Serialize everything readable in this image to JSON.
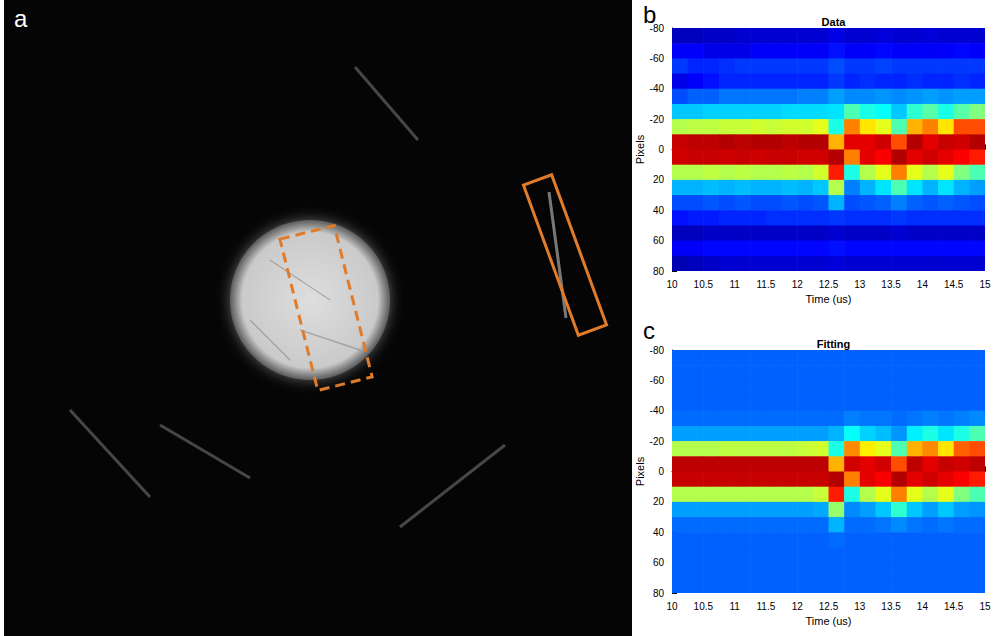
{
  "panel_a": {
    "panel_label": "a"
  },
  "chart_data": [
    {
      "type": "heatmap",
      "panel_label": "b",
      "title": "Data",
      "x_label": "Time (us)",
      "y_label": "Pixels",
      "x": [
        10.125,
        10.375,
        10.625,
        10.875,
        11.125,
        11.375,
        11.625,
        11.875,
        12.125,
        12.375,
        12.625,
        12.875,
        13.125,
        13.375,
        13.625,
        13.875,
        14.125,
        14.375,
        14.625,
        14.875
      ],
      "y": [
        -75,
        -65,
        -55,
        -45,
        -35,
        -25,
        -15,
        -5,
        5,
        15,
        25,
        35,
        45,
        55,
        65,
        75
      ],
      "z": [
        [
          0.06,
          0.06,
          0.07,
          0.07,
          0.08,
          0.08,
          0.08,
          0.08,
          0.08,
          0.08,
          0.1,
          0.08,
          0.08,
          0.09,
          0.08,
          0.08,
          0.09,
          0.08,
          0.08,
          0.08
        ],
        [
          0.12,
          0.12,
          0.1,
          0.1,
          0.1,
          0.12,
          0.12,
          0.12,
          0.12,
          0.12,
          0.14,
          0.12,
          0.12,
          0.13,
          0.12,
          0.12,
          0.12,
          0.12,
          0.13,
          0.12
        ],
        [
          0.18,
          0.16,
          0.16,
          0.17,
          0.18,
          0.18,
          0.18,
          0.18,
          0.18,
          0.18,
          0.2,
          0.18,
          0.18,
          0.19,
          0.18,
          0.18,
          0.18,
          0.18,
          0.18,
          0.18
        ],
        [
          0.1,
          0.12,
          0.14,
          0.16,
          0.16,
          0.16,
          0.16,
          0.16,
          0.16,
          0.16,
          0.18,
          0.16,
          0.17,
          0.16,
          0.16,
          0.17,
          0.16,
          0.16,
          0.17,
          0.16
        ],
        [
          0.2,
          0.22,
          0.22,
          0.24,
          0.24,
          0.24,
          0.24,
          0.24,
          0.25,
          0.25,
          0.28,
          0.26,
          0.26,
          0.27,
          0.26,
          0.27,
          0.28,
          0.27,
          0.28,
          0.28
        ],
        [
          0.32,
          0.32,
          0.33,
          0.33,
          0.33,
          0.33,
          0.33,
          0.34,
          0.34,
          0.34,
          0.35,
          0.45,
          0.4,
          0.38,
          0.32,
          0.42,
          0.46,
          0.4,
          0.46,
          0.5
        ],
        [
          0.55,
          0.56,
          0.56,
          0.57,
          0.57,
          0.58,
          0.57,
          0.58,
          0.58,
          0.6,
          0.4,
          0.75,
          0.65,
          0.6,
          0.45,
          0.7,
          0.75,
          0.65,
          0.8,
          0.8
        ],
        [
          0.93,
          0.94,
          0.94,
          0.95,
          0.94,
          0.95,
          0.95,
          0.94,
          0.95,
          0.95,
          0.7,
          0.9,
          0.9,
          0.92,
          0.8,
          0.95,
          0.9,
          0.93,
          0.92,
          0.95
        ],
        [
          0.92,
          0.93,
          0.93,
          0.92,
          0.93,
          0.92,
          0.93,
          0.93,
          0.92,
          0.92,
          0.95,
          0.75,
          0.9,
          0.88,
          0.95,
          0.9,
          0.92,
          0.9,
          0.88,
          0.85
        ],
        [
          0.55,
          0.55,
          0.56,
          0.55,
          0.56,
          0.55,
          0.55,
          0.56,
          0.55,
          0.58,
          0.85,
          0.4,
          0.55,
          0.6,
          0.75,
          0.6,
          0.55,
          0.6,
          0.5,
          0.45
        ],
        [
          0.3,
          0.3,
          0.31,
          0.3,
          0.31,
          0.3,
          0.3,
          0.31,
          0.3,
          0.32,
          0.55,
          0.25,
          0.3,
          0.35,
          0.45,
          0.35,
          0.3,
          0.35,
          0.3,
          0.28
        ],
        [
          0.2,
          0.2,
          0.21,
          0.2,
          0.21,
          0.2,
          0.2,
          0.21,
          0.2,
          0.21,
          0.3,
          0.2,
          0.21,
          0.22,
          0.25,
          0.22,
          0.21,
          0.22,
          0.21,
          0.2
        ],
        [
          0.14,
          0.15,
          0.15,
          0.16,
          0.16,
          0.16,
          0.17,
          0.17,
          0.17,
          0.17,
          0.18,
          0.17,
          0.17,
          0.17,
          0.18,
          0.17,
          0.17,
          0.17,
          0.17,
          0.17
        ],
        [
          0.06,
          0.06,
          0.07,
          0.07,
          0.07,
          0.07,
          0.07,
          0.07,
          0.07,
          0.07,
          0.08,
          0.07,
          0.07,
          0.07,
          0.08,
          0.07,
          0.07,
          0.07,
          0.07,
          0.07
        ],
        [
          0.12,
          0.12,
          0.13,
          0.13,
          0.13,
          0.13,
          0.13,
          0.13,
          0.13,
          0.13,
          0.14,
          0.13,
          0.13,
          0.13,
          0.13,
          0.13,
          0.13,
          0.13,
          0.13,
          0.13
        ],
        [
          0.05,
          0.06,
          0.07,
          0.08,
          0.08,
          0.08,
          0.08,
          0.08,
          0.08,
          0.08,
          0.09,
          0.08,
          0.08,
          0.08,
          0.08,
          0.08,
          0.08,
          0.08,
          0.08,
          0.08
        ]
      ],
      "zlim": [
        0,
        1
      ],
      "xlim": [
        10,
        15
      ],
      "xticks": [
        10,
        10.5,
        11,
        11.5,
        12,
        12.5,
        13,
        13.5,
        14,
        14.5,
        15
      ],
      "ylim": [
        -80,
        80
      ],
      "yticks": [
        -80,
        -60,
        -40,
        -20,
        0,
        20,
        40,
        60,
        80
      ]
    },
    {
      "type": "heatmap",
      "panel_label": "c",
      "title": "Fitting",
      "x_label": "Time (us)",
      "y_label": "Pixels",
      "x": [
        10.125,
        10.375,
        10.625,
        10.875,
        11.125,
        11.375,
        11.625,
        11.875,
        12.125,
        12.375,
        12.625,
        12.875,
        13.125,
        13.375,
        13.625,
        13.875,
        14.125,
        14.375,
        14.625,
        14.875
      ],
      "y": [
        -75,
        -65,
        -55,
        -45,
        -35,
        -25,
        -15,
        -5,
        5,
        15,
        25,
        35,
        45,
        55,
        65,
        75
      ],
      "z": [
        [
          0.22,
          0.22,
          0.22,
          0.22,
          0.22,
          0.22,
          0.22,
          0.22,
          0.22,
          0.22,
          0.22,
          0.22,
          0.22,
          0.22,
          0.22,
          0.22,
          0.22,
          0.22,
          0.22,
          0.22
        ],
        [
          0.22,
          0.22,
          0.22,
          0.22,
          0.22,
          0.22,
          0.22,
          0.22,
          0.22,
          0.22,
          0.22,
          0.22,
          0.22,
          0.22,
          0.22,
          0.22,
          0.22,
          0.22,
          0.22,
          0.22
        ],
        [
          0.22,
          0.22,
          0.22,
          0.22,
          0.22,
          0.22,
          0.22,
          0.22,
          0.22,
          0.22,
          0.22,
          0.22,
          0.22,
          0.22,
          0.22,
          0.22,
          0.22,
          0.22,
          0.22,
          0.22
        ],
        [
          0.22,
          0.22,
          0.22,
          0.22,
          0.22,
          0.22,
          0.22,
          0.22,
          0.22,
          0.22,
          0.22,
          0.22,
          0.22,
          0.22,
          0.22,
          0.22,
          0.22,
          0.22,
          0.22,
          0.22
        ],
        [
          0.23,
          0.23,
          0.23,
          0.23,
          0.23,
          0.23,
          0.23,
          0.23,
          0.23,
          0.23,
          0.23,
          0.25,
          0.24,
          0.24,
          0.23,
          0.24,
          0.25,
          0.24,
          0.25,
          0.26
        ],
        [
          0.28,
          0.28,
          0.28,
          0.28,
          0.28,
          0.28,
          0.28,
          0.28,
          0.28,
          0.28,
          0.3,
          0.38,
          0.33,
          0.31,
          0.27,
          0.36,
          0.4,
          0.35,
          0.4,
          0.45
        ],
        [
          0.55,
          0.55,
          0.55,
          0.56,
          0.56,
          0.56,
          0.56,
          0.56,
          0.57,
          0.58,
          0.4,
          0.74,
          0.64,
          0.6,
          0.45,
          0.7,
          0.74,
          0.65,
          0.78,
          0.8
        ],
        [
          0.94,
          0.94,
          0.94,
          0.94,
          0.94,
          0.94,
          0.94,
          0.94,
          0.94,
          0.94,
          0.7,
          0.92,
          0.9,
          0.92,
          0.8,
          0.94,
          0.9,
          0.93,
          0.92,
          0.94
        ],
        [
          0.93,
          0.93,
          0.93,
          0.93,
          0.93,
          0.93,
          0.93,
          0.93,
          0.93,
          0.93,
          0.95,
          0.75,
          0.9,
          0.88,
          0.95,
          0.9,
          0.92,
          0.9,
          0.88,
          0.85
        ],
        [
          0.55,
          0.55,
          0.55,
          0.55,
          0.55,
          0.55,
          0.55,
          0.55,
          0.55,
          0.57,
          0.85,
          0.4,
          0.55,
          0.6,
          0.75,
          0.6,
          0.55,
          0.6,
          0.5,
          0.45
        ],
        [
          0.28,
          0.28,
          0.28,
          0.28,
          0.28,
          0.28,
          0.28,
          0.28,
          0.28,
          0.29,
          0.52,
          0.26,
          0.28,
          0.32,
          0.42,
          0.32,
          0.28,
          0.32,
          0.28,
          0.27
        ],
        [
          0.23,
          0.23,
          0.23,
          0.23,
          0.23,
          0.23,
          0.23,
          0.23,
          0.23,
          0.23,
          0.3,
          0.23,
          0.23,
          0.24,
          0.26,
          0.24,
          0.23,
          0.24,
          0.23,
          0.23
        ],
        [
          0.22,
          0.22,
          0.22,
          0.22,
          0.22,
          0.22,
          0.22,
          0.22,
          0.22,
          0.22,
          0.23,
          0.22,
          0.22,
          0.22,
          0.22,
          0.22,
          0.22,
          0.22,
          0.22,
          0.22
        ],
        [
          0.22,
          0.22,
          0.22,
          0.22,
          0.22,
          0.22,
          0.22,
          0.22,
          0.22,
          0.22,
          0.22,
          0.22,
          0.22,
          0.22,
          0.22,
          0.22,
          0.22,
          0.22,
          0.22,
          0.22
        ],
        [
          0.22,
          0.22,
          0.22,
          0.22,
          0.22,
          0.22,
          0.22,
          0.22,
          0.22,
          0.22,
          0.22,
          0.22,
          0.22,
          0.22,
          0.22,
          0.22,
          0.22,
          0.22,
          0.22,
          0.22
        ],
        [
          0.22,
          0.22,
          0.22,
          0.22,
          0.22,
          0.22,
          0.22,
          0.22,
          0.22,
          0.22,
          0.22,
          0.22,
          0.22,
          0.22,
          0.22,
          0.22,
          0.22,
          0.22,
          0.22,
          0.22
        ]
      ],
      "zlim": [
        0,
        1
      ],
      "xlim": [
        10,
        15
      ],
      "xticks": [
        10,
        10.5,
        11,
        11.5,
        12,
        12.5,
        13,
        13.5,
        14,
        14.5,
        15
      ],
      "ylim": [
        -80,
        80
      ],
      "yticks": [
        -80,
        -60,
        -40,
        -20,
        0,
        20,
        40,
        60,
        80
      ]
    }
  ]
}
